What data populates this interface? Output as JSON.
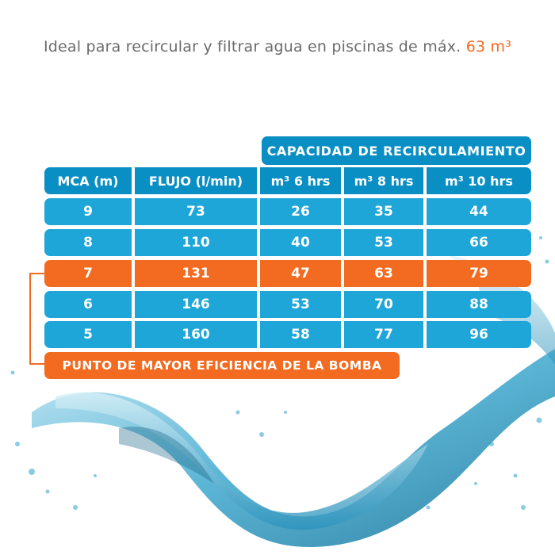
{
  "headline": {
    "text": "Ideal para recircular y filtrar agua en piscinas de máx.",
    "accent": "63 m³",
    "accent_color": "#f26b21"
  },
  "table": {
    "group_header": "CAPACIDAD DE RECIRCULAMIENTO",
    "columns": [
      "MCA (m)",
      "FLUJO (l/min)",
      "m³ 6 hrs",
      "m³ 8 hrs",
      "m³ 10 hrs"
    ],
    "rows": [
      [
        "9",
        "73",
        "26",
        "35",
        "44"
      ],
      [
        "8",
        "110",
        "40",
        "53",
        "66"
      ],
      [
        "7",
        "131",
        "47",
        "63",
        "79"
      ],
      [
        "6",
        "146",
        "53",
        "70",
        "88"
      ],
      [
        "5",
        "160",
        "58",
        "77",
        "96"
      ]
    ],
    "highlight_row": 2,
    "colors": {
      "header": "#0a8fc5",
      "cell": "#1ea6d8",
      "highlight": "#f26b21"
    }
  },
  "efficiency_label": "PUNTO DE MAYOR EFICIENCIA DE LA BOMBA"
}
